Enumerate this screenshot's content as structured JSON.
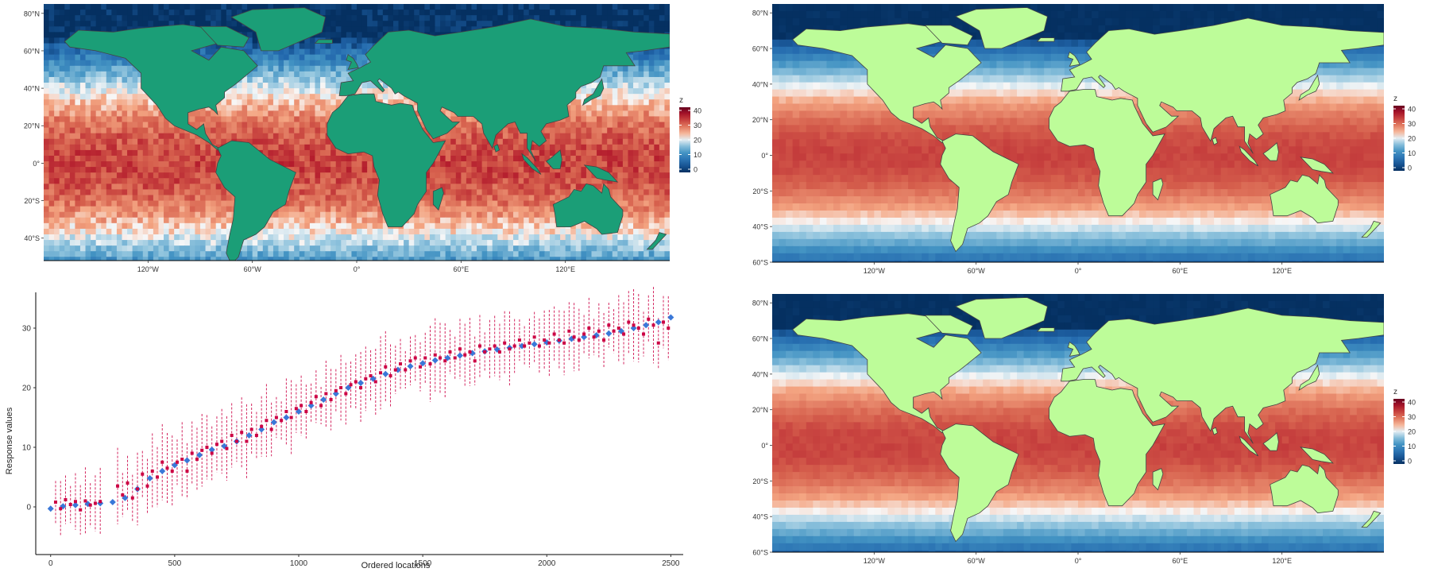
{
  "panels": {
    "top_left": {
      "type": "heatmap",
      "land_color": "#1b9e77",
      "lat_ticks": [
        "80°N",
        "60°N",
        "40°N",
        "20°N",
        "0°",
        "20°S",
        "40°S"
      ],
      "lat_values": [
        80,
        60,
        40,
        20,
        0,
        -20,
        -40
      ],
      "lon_ticks": [
        "120°W",
        "60°W",
        "0°",
        "60°E",
        "120°E"
      ],
      "lon_values": [
        -120,
        -60,
        0,
        60,
        120
      ],
      "legend": {
        "title": "z",
        "ticks": [
          "40",
          "30",
          "20",
          "10",
          "0"
        ]
      },
      "xlim": [
        -180,
        180
      ],
      "ylim": [
        -52,
        85
      ]
    },
    "top_right": {
      "type": "heatmap",
      "land_color": "#bdfc99",
      "lat_ticks": [
        "80°N",
        "60°N",
        "40°N",
        "20°N",
        "0°",
        "20°S",
        "40°S",
        "60°S"
      ],
      "lat_values": [
        80,
        60,
        40,
        20,
        0,
        -20,
        -40,
        -60
      ],
      "lon_ticks": [
        "120°W",
        "60°W",
        "0°",
        "60°E",
        "120°E"
      ],
      "lon_values": [
        -120,
        -60,
        0,
        60,
        120
      ],
      "legend": {
        "title": "z",
        "ticks": [
          "40",
          "30",
          "20",
          "10",
          "0"
        ]
      },
      "xlim": [
        -180,
        180
      ],
      "ylim": [
        -60,
        85
      ]
    },
    "bottom_right": {
      "type": "heatmap",
      "land_color": "#bdfc99",
      "lat_ticks": [
        "80°N",
        "60°N",
        "40°N",
        "20°N",
        "0°",
        "20°S",
        "40°S",
        "60°S"
      ],
      "lat_values": [
        80,
        60,
        40,
        20,
        0,
        -20,
        -40,
        -60
      ],
      "lon_ticks": [
        "120°W",
        "60°W",
        "0°",
        "60°E",
        "120°E"
      ],
      "lon_values": [
        -120,
        -60,
        0,
        60,
        120
      ],
      "legend": {
        "title": "z",
        "ticks": [
          "40",
          "30",
          "20",
          "10",
          "0"
        ]
      },
      "xlim": [
        -180,
        180
      ],
      "ylim": [
        -60,
        85
      ]
    }
  },
  "chart_data": {
    "type": "scatter",
    "xlabel": "Ordered locations",
    "ylabel": "Response values",
    "xlim": [
      -60,
      2550
    ],
    "ylim": [
      -8,
      36
    ],
    "x_ticks": [
      0,
      500,
      1000,
      1500,
      2000,
      2500
    ],
    "y_ticks": [
      0,
      10,
      20,
      30
    ],
    "x_tick_labels": [
      "0",
      "500",
      "1000",
      "1500",
      "2000",
      "2500"
    ],
    "y_tick_labels": [
      "0",
      "10",
      "20",
      "30"
    ],
    "series": [
      {
        "color": "#3a78d8",
        "x": [
          0,
          50,
          100,
          150,
          200,
          250,
          300,
          350,
          400,
          450,
          500,
          550,
          600,
          650,
          700,
          750,
          800,
          850,
          900,
          950,
          1000,
          1050,
          1100,
          1150,
          1200,
          1250,
          1300,
          1350,
          1400,
          1450,
          1500,
          1550,
          1600,
          1650,
          1700,
          1750,
          1800,
          1850,
          1900,
          1950,
          2000,
          2050,
          2100,
          2150,
          2200,
          2250,
          2300,
          2350,
          2400,
          2450,
          2500
        ],
        "y": [
          -0.3,
          0.1,
          0.3,
          0.5,
          0.6,
          0.8,
          1.5,
          3.0,
          4.8,
          6.0,
          7.0,
          7.8,
          8.7,
          9.6,
          10.2,
          11.0,
          12.0,
          13.0,
          14.2,
          15.0,
          16.0,
          17.0,
          18.0,
          19.0,
          20.0,
          20.8,
          21.5,
          22.3,
          23.0,
          23.6,
          24.1,
          24.6,
          25.0,
          25.4,
          25.8,
          26.1,
          26.4,
          26.7,
          27.0,
          27.3,
          27.6,
          27.9,
          28.2,
          28.5,
          28.8,
          29.1,
          29.5,
          30.0,
          30.5,
          31.0,
          31.8
        ]
      },
      {
        "color": "#cc0044",
        "x": [
          20,
          40,
          60,
          80,
          100,
          120,
          140,
          160,
          180,
          200,
          270,
          290,
          310,
          330,
          350,
          370,
          390,
          410,
          430,
          450,
          470,
          490,
          510,
          530,
          550,
          570,
          590,
          610,
          630,
          650,
          670,
          690,
          710,
          730,
          750,
          770,
          790,
          810,
          830,
          850,
          870,
          890,
          910,
          930,
          950,
          970,
          990,
          1010,
          1030,
          1050,
          1070,
          1090,
          1110,
          1130,
          1150,
          1170,
          1190,
          1210,
          1230,
          1250,
          1270,
          1290,
          1310,
          1330,
          1350,
          1370,
          1390,
          1410,
          1430,
          1450,
          1470,
          1490,
          1510,
          1530,
          1550,
          1570,
          1590,
          1610,
          1630,
          1650,
          1670,
          1690,
          1710,
          1730,
          1750,
          1770,
          1790,
          1810,
          1830,
          1850,
          1870,
          1890,
          1910,
          1930,
          1950,
          1970,
          1990,
          2010,
          2030,
          2050,
          2070,
          2090,
          2110,
          2130,
          2150,
          2170,
          2190,
          2210,
          2230,
          2250,
          2270,
          2290,
          2310,
          2330,
          2350,
          2370,
          2390,
          2410,
          2430,
          2450,
          2470,
          2490
        ],
        "y": [
          0.8,
          -0.3,
          1.2,
          0.4,
          0.9,
          -0.5,
          1.0,
          0.3,
          0.6,
          0.9,
          3.5,
          2.0,
          4.0,
          1.5,
          3.0,
          5.5,
          3.5,
          6.0,
          5.0,
          7.5,
          6.5,
          6.0,
          7.5,
          8.0,
          6.0,
          9.0,
          8.0,
          9.5,
          10.0,
          9.0,
          10.5,
          11.0,
          9.8,
          12.0,
          11.0,
          12.5,
          11.0,
          13.0,
          12.0,
          13.5,
          14.5,
          13.0,
          15.0,
          14.5,
          16.0,
          15.0,
          16.5,
          17.0,
          16.0,
          17.5,
          18.5,
          17.0,
          19.0,
          18.0,
          19.5,
          20.0,
          19.0,
          20.5,
          21.0,
          20.0,
          21.5,
          22.0,
          21.0,
          22.5,
          23.5,
          22.0,
          23.0,
          24.0,
          23.0,
          24.5,
          25.0,
          23.5,
          25.0,
          24.0,
          25.5,
          25.0,
          24.5,
          26.0,
          25.0,
          26.5,
          25.5,
          26.0,
          24.5,
          27.0,
          26.0,
          26.5,
          27.0,
          26.0,
          27.5,
          26.5,
          27.0,
          28.0,
          27.0,
          27.5,
          28.5,
          27.0,
          28.0,
          27.5,
          29.0,
          28.0,
          27.5,
          29.5,
          28.5,
          28.0,
          29.0,
          30.0,
          28.5,
          29.5,
          28.0,
          30.5,
          29.5,
          30.0,
          29.0,
          31.0,
          30.5,
          30.0,
          29.0,
          31.5,
          30.5,
          27.5,
          31.0,
          30.0
        ]
      }
    ]
  }
}
